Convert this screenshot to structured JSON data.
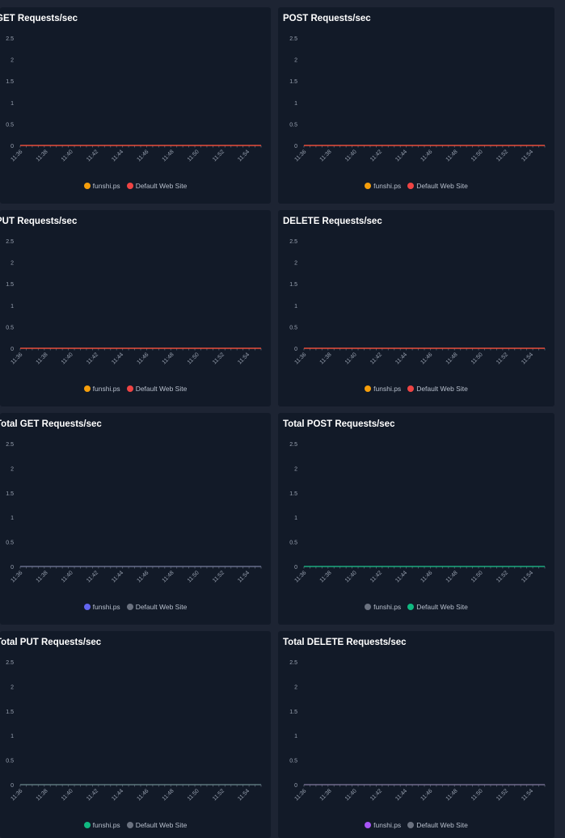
{
  "chart_data": [
    {
      "type": "line",
      "title": "GET Requests/sec",
      "x": [
        "11:36",
        "11:38",
        "11:40",
        "11:42",
        "11:44",
        "11:46",
        "11:48",
        "11:50",
        "11:52",
        "11:54"
      ],
      "yticks": [
        "0",
        "0.5",
        "1",
        "1.5",
        "2",
        "2.5"
      ],
      "ylim": [
        0,
        2.5
      ],
      "series": [
        {
          "name": "funshi.ps",
          "color": "#f59e0b",
          "values": [
            0,
            0,
            0,
            0,
            0,
            0,
            0,
            0,
            0,
            0
          ]
        },
        {
          "name": "Default Web Site",
          "color": "#ef4444",
          "values": [
            0,
            0,
            0,
            0,
            0,
            0,
            0,
            0,
            0,
            0
          ]
        }
      ],
      "line_color": "#ef4444"
    },
    {
      "type": "line",
      "title": "POST Requests/sec",
      "x": [
        "11:36",
        "11:38",
        "11:40",
        "11:42",
        "11:44",
        "11:46",
        "11:48",
        "11:50",
        "11:52",
        "11:54"
      ],
      "yticks": [
        "0",
        "0.5",
        "1",
        "1.5",
        "2",
        "2.5"
      ],
      "ylim": [
        0,
        2.5
      ],
      "series": [
        {
          "name": "funshi.ps",
          "color": "#f59e0b",
          "values": [
            0,
            0,
            0,
            0,
            0,
            0,
            0,
            0,
            0,
            0
          ]
        },
        {
          "name": "Default Web Site",
          "color": "#ef4444",
          "values": [
            0,
            0,
            0,
            0,
            0,
            0,
            0,
            0,
            0,
            0
          ]
        }
      ],
      "line_color": "#ef4444"
    },
    {
      "type": "line",
      "title": "PUT Requests/sec",
      "x": [
        "11:36",
        "11:38",
        "11:40",
        "11:42",
        "11:44",
        "11:46",
        "11:48",
        "11:50",
        "11:52",
        "11:54"
      ],
      "yticks": [
        "0",
        "0.5",
        "1",
        "1.5",
        "2",
        "2.5"
      ],
      "ylim": [
        0,
        2.5
      ],
      "series": [
        {
          "name": "funshi.ps",
          "color": "#f59e0b",
          "values": [
            0,
            0,
            0,
            0,
            0,
            0,
            0,
            0,
            0,
            0
          ]
        },
        {
          "name": "Default Web Site",
          "color": "#ef4444",
          "values": [
            0,
            0,
            0,
            0,
            0,
            0,
            0,
            0,
            0,
            0
          ]
        }
      ],
      "line_color": "#ef4444"
    },
    {
      "type": "line",
      "title": "DELETE Requests/sec",
      "x": [
        "11:36",
        "11:38",
        "11:40",
        "11:42",
        "11:44",
        "11:46",
        "11:48",
        "11:50",
        "11:52",
        "11:54"
      ],
      "yticks": [
        "0",
        "0.5",
        "1",
        "1.5",
        "2",
        "2.5"
      ],
      "ylim": [
        0,
        2.5
      ],
      "series": [
        {
          "name": "funshi.ps",
          "color": "#f59e0b",
          "values": [
            0,
            0,
            0,
            0,
            0,
            0,
            0,
            0,
            0,
            0
          ]
        },
        {
          "name": "Default Web Site",
          "color": "#ef4444",
          "values": [
            0,
            0,
            0,
            0,
            0,
            0,
            0,
            0,
            0,
            0
          ]
        }
      ],
      "line_color": "#ef4444"
    },
    {
      "type": "line",
      "title": "Total GET Requests/sec",
      "x": [
        "11:36",
        "11:38",
        "11:40",
        "11:42",
        "11:44",
        "11:46",
        "11:48",
        "11:50",
        "11:52",
        "11:54"
      ],
      "yticks": [
        "0",
        "0.5",
        "1",
        "1.5",
        "2",
        "2.5"
      ],
      "ylim": [
        0,
        2.5
      ],
      "series": [
        {
          "name": "funshi.ps",
          "color": "#6366f1",
          "values": [
            0,
            0,
            0,
            0,
            0,
            0,
            0,
            0,
            0,
            0
          ]
        },
        {
          "name": "Default Web Site",
          "color": "#6b7280",
          "values": [
            0,
            0,
            0,
            0,
            0,
            0,
            0,
            0,
            0,
            0
          ]
        }
      ],
      "line_color": "#6b7280"
    },
    {
      "type": "line",
      "title": "Total POST Requests/sec",
      "x": [
        "11:36",
        "11:38",
        "11:40",
        "11:42",
        "11:44",
        "11:46",
        "11:48",
        "11:50",
        "11:52",
        "11:54"
      ],
      "yticks": [
        "0",
        "0.5",
        "1",
        "1.5",
        "2",
        "2.5"
      ],
      "ylim": [
        0,
        2.5
      ],
      "series": [
        {
          "name": "funshi.ps",
          "color": "#6b7280",
          "values": [
            0,
            0,
            0,
            0,
            0,
            0,
            0,
            0,
            0,
            0
          ]
        },
        {
          "name": "Default Web Site",
          "color": "#10b981",
          "values": [
            0,
            0,
            0,
            0,
            0,
            0,
            0,
            0,
            0,
            0
          ]
        }
      ],
      "line_color": "#10b981"
    },
    {
      "type": "line",
      "title": "Total PUT Requests/sec",
      "x": [
        "11:36",
        "11:38",
        "11:40",
        "11:42",
        "11:44",
        "11:46",
        "11:48",
        "11:50",
        "11:52",
        "11:54"
      ],
      "yticks": [
        "0",
        "0.5",
        "1",
        "1.5",
        "2",
        "2.5"
      ],
      "ylim": [
        0,
        2.5
      ],
      "series": [
        {
          "name": "funshi.ps",
          "color": "#10b981",
          "values": [
            0,
            0,
            0,
            0,
            0,
            0,
            0,
            0,
            0,
            0
          ]
        },
        {
          "name": "Default Web Site",
          "color": "#6b7280",
          "values": [
            0,
            0,
            0,
            0,
            0,
            0,
            0,
            0,
            0,
            0
          ]
        }
      ],
      "line_color": "#6b7280"
    },
    {
      "type": "line",
      "title": "Total DELETE Requests/sec",
      "x": [
        "11:36",
        "11:38",
        "11:40",
        "11:42",
        "11:44",
        "11:46",
        "11:48",
        "11:50",
        "11:52",
        "11:54"
      ],
      "yticks": [
        "0",
        "0.5",
        "1",
        "1.5",
        "2",
        "2.5"
      ],
      "ylim": [
        0,
        2.5
      ],
      "series": [
        {
          "name": "funshi.ps",
          "color": "#a855f7",
          "values": [
            0,
            0,
            0,
            0,
            0,
            0,
            0,
            0,
            0,
            0
          ]
        },
        {
          "name": "Default Web Site",
          "color": "#6b7280",
          "values": [
            0,
            0,
            0,
            0,
            0,
            0,
            0,
            0,
            0,
            0
          ]
        }
      ],
      "line_color": "#6b7280"
    }
  ]
}
